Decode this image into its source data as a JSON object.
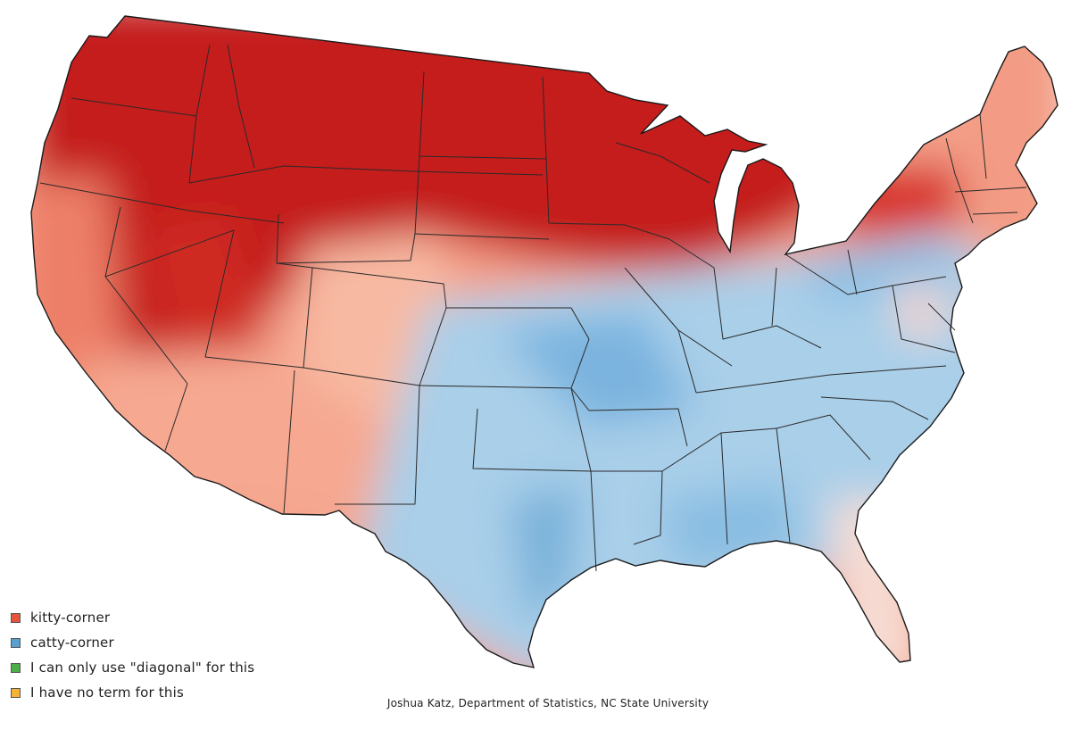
{
  "colors": {
    "kitty_corner": "#e8533c",
    "catty_corner": "#5a9fd2",
    "diagonal": "#4daf4a",
    "no_term": "#f5b335"
  },
  "legend": {
    "items": [
      {
        "label": "kitty-corner",
        "color": "#e8533c"
      },
      {
        "label": "catty-corner",
        "color": "#5a9fd2"
      },
      {
        "label": "I can only use \"diagonal\" for this",
        "color": "#4daf4a"
      },
      {
        "label": "I have no term for this",
        "color": "#f5b335"
      }
    ]
  },
  "credit": "Joshua Katz, Department of Statistics, NC State University"
}
